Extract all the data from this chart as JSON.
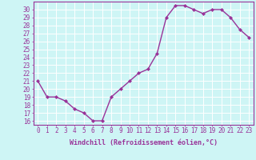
{
  "x": [
    0,
    1,
    2,
    3,
    4,
    5,
    6,
    7,
    8,
    9,
    10,
    11,
    12,
    13,
    14,
    15,
    16,
    17,
    18,
    19,
    20,
    21,
    22,
    23
  ],
  "y": [
    21,
    19,
    19,
    18.5,
    17.5,
    17,
    16,
    16,
    19,
    20,
    21,
    22,
    22.5,
    24.5,
    29,
    30.5,
    30.5,
    30,
    29.5,
    30,
    30,
    29,
    27.5,
    26.5
  ],
  "line_color": "#993399",
  "marker": "D",
  "marker_size": 2.0,
  "background_color": "#cef5f5",
  "grid_color": "#ffffff",
  "xlabel": "Windchill (Refroidissement éolien,°C)",
  "xlabel_fontsize": 6.0,
  "xtick_labels": [
    "0",
    "1",
    "2",
    "3",
    "4",
    "5",
    "6",
    "7",
    "8",
    "9",
    "10",
    "11",
    "12",
    "13",
    "14",
    "15",
    "16",
    "17",
    "18",
    "19",
    "20",
    "21",
    "22",
    "23"
  ],
  "ytick_min": 16,
  "ytick_max": 30,
  "ytick_step": 1,
  "ylim": [
    15.5,
    31.0
  ],
  "xlim": [
    -0.5,
    23.5
  ],
  "tick_color": "#993399",
  "tick_fontsize": 5.5,
  "axis_label_color": "#993399",
  "spine_color": "#993399",
  "line_width": 1.0
}
